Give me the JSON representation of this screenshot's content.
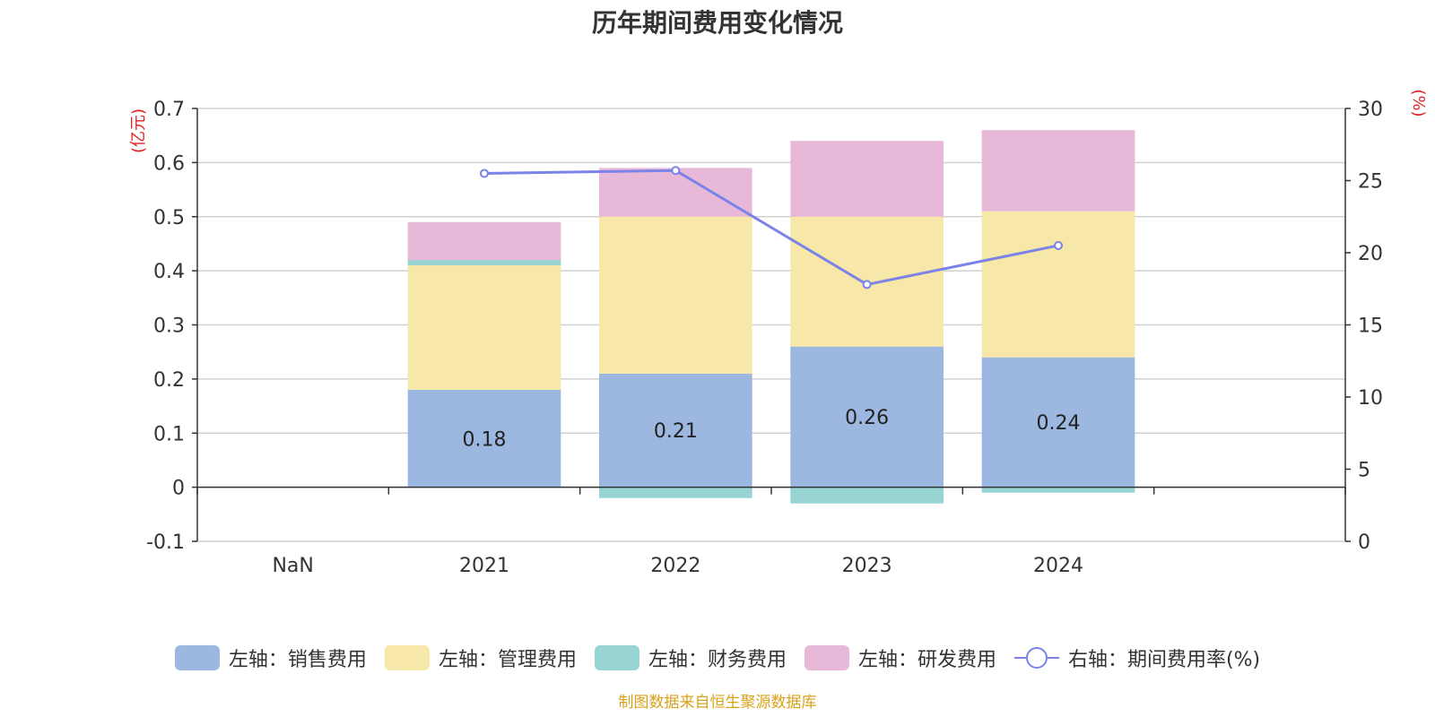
{
  "title": "历年期间费用变化情况",
  "footer": "制图数据来自恒生聚源数据库",
  "chart_data": {
    "type": "bar",
    "stacked": true,
    "categories": [
      "NaN",
      "2021",
      "2022",
      "2023",
      "2024"
    ],
    "left_axis": {
      "unit_label": "(亿元)",
      "ylim": [
        -0.1,
        0.7
      ],
      "ticks": [
        "-0.1",
        "0",
        "0.1",
        "0.2",
        "0.3",
        "0.4",
        "0.5",
        "0.6",
        "0.7"
      ]
    },
    "right_axis": {
      "unit_label": "(%)",
      "ylim": [
        0,
        30
      ],
      "ticks": [
        "0",
        "5",
        "10",
        "15",
        "20",
        "25",
        "30"
      ]
    },
    "series": [
      {
        "name": "左轴：销售费用",
        "axis": "left",
        "color": "#9db8e0",
        "values": [
          null,
          0.18,
          0.21,
          0.26,
          0.24
        ],
        "data_labels": [
          "",
          "0.18",
          "0.21",
          "0.26",
          "0.24"
        ]
      },
      {
        "name": "左轴：管理费用",
        "axis": "left",
        "color": "#f7e7a8",
        "values": [
          null,
          0.23,
          0.29,
          0.24,
          0.27
        ]
      },
      {
        "name": "左轴：财务费用",
        "axis": "left",
        "color": "#98d4d4",
        "values": [
          null,
          0.01,
          -0.02,
          -0.03,
          -0.01
        ]
      },
      {
        "name": "左轴：研发费用",
        "axis": "left",
        "color": "#e8b8d8",
        "values": [
          null,
          0.07,
          0.09,
          0.14,
          0.15
        ]
      },
      {
        "name": "右轴：期间费用率(%)",
        "axis": "right",
        "type": "line",
        "color": "#7b83e8",
        "values": [
          null,
          25.5,
          25.7,
          17.8,
          20.5
        ]
      }
    ],
    "grid": true,
    "legend_position": "bottom"
  }
}
